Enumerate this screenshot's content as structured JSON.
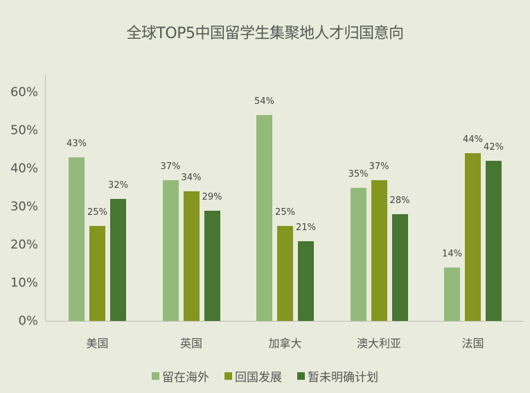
{
  "title": "全球TOP5中国留学生集聚地人才归国意向",
  "y_ticks": [
    "60%",
    "50%",
    "40%",
    "30%",
    "20%",
    "10%",
    "0%"
  ],
  "categories": [
    "美国",
    "英国",
    "加拿大",
    "澳大利亚",
    "法国"
  ],
  "legend": [
    {
      "label": "留在海外",
      "color": "#93BA7B"
    },
    {
      "label": "回国发展",
      "color": "#849620"
    },
    {
      "label": "暂未明确计划",
      "color": "#467632"
    }
  ],
  "labels": {
    "s0": [
      "43%",
      "37%",
      "54%",
      "35%",
      "14%"
    ],
    "s1": [
      "25%",
      "34%",
      "25%",
      "37%",
      "44%"
    ],
    "s2": [
      "32%",
      "29%",
      "21%",
      "28%",
      "42%"
    ]
  },
  "chart_data": {
    "type": "bar",
    "title": "全球TOP5中国留学生集聚地人才归国意向",
    "categories": [
      "美国",
      "英国",
      "加拿大",
      "澳大利亚",
      "法国"
    ],
    "series": [
      {
        "name": "留在海外",
        "values": [
          43,
          37,
          54,
          35,
          14
        ],
        "color": "#93BA7B"
      },
      {
        "name": "回国发展",
        "values": [
          25,
          34,
          25,
          37,
          44
        ],
        "color": "#849620"
      },
      {
        "name": "暂未明确计划",
        "values": [
          32,
          29,
          21,
          28,
          42
        ],
        "color": "#467632"
      }
    ],
    "xlabel": "",
    "ylabel": "",
    "ylim": [
      0,
      60
    ],
    "y_tick_labels": [
      "0%",
      "10%",
      "20%",
      "30%",
      "40%",
      "50%",
      "60%"
    ],
    "grid": false,
    "legend_position": "bottom",
    "data_labels": true
  }
}
